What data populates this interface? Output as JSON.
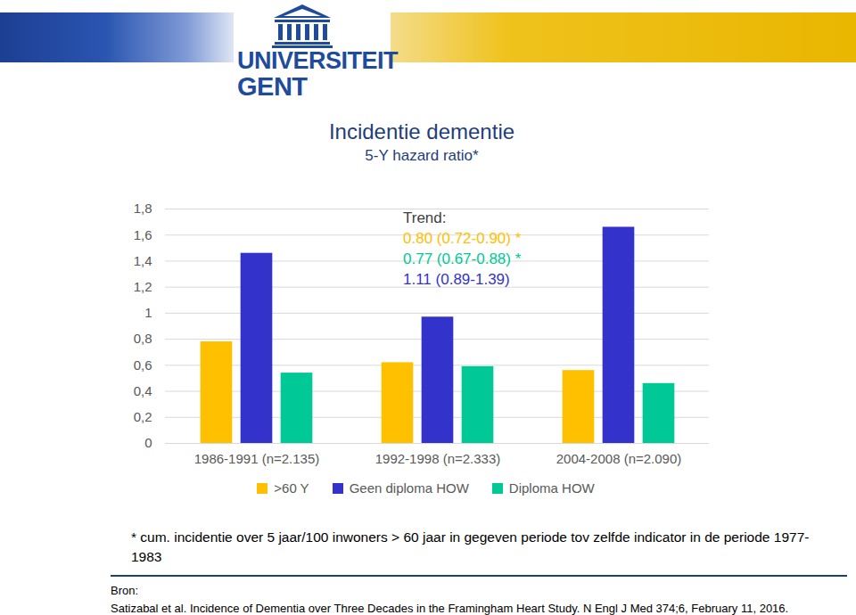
{
  "header": {
    "logo_lines": [
      "UNIVERSITEIT",
      "GENT"
    ]
  },
  "chart_data": {
    "type": "bar",
    "title": "Incidentie dementie",
    "subtitle": "5-Y hazard ratio*",
    "categories": [
      "1986-1991 (n=2.135)",
      "1992-1998 (n=2.333)",
      "2004-2008 (n=2.090)"
    ],
    "series": [
      {
        "name": ">60 Y",
        "color": "#FFC000",
        "values": [
          0.78,
          0.62,
          0.56
        ]
      },
      {
        "name": "Geen diploma HOW",
        "color": "#3333CC",
        "values": [
          1.46,
          0.97,
          1.66
        ]
      },
      {
        "name": "Diploma HOW",
        "color": "#00C896",
        "values": [
          0.54,
          0.59,
          0.46
        ]
      }
    ],
    "ylim": [
      0,
      1.8
    ],
    "yticks": [
      0,
      {
        "value": 0.2,
        "label": "0,2"
      },
      {
        "value": 0.4,
        "label": "0,4"
      },
      {
        "value": 0.6,
        "label": "0,6"
      },
      {
        "value": 0.8,
        "label": "0,8"
      },
      1,
      {
        "value": 1.2,
        "label": "1,2"
      },
      {
        "value": 1.4,
        "label": "1,4"
      },
      {
        "value": 1.6,
        "label": "1,6"
      },
      {
        "value": 1.8,
        "label": "1,8"
      }
    ],
    "grid": true,
    "legend": "bottom",
    "annotations": [
      {
        "text": "Trend:"
      },
      {
        "text": "0.80 (0.72-0.90) *",
        "color": "#FFC000"
      },
      {
        "text": "0.77 (0.67-0.88) *",
        "color": "#00C896"
      },
      {
        "text": "1.11 (0.89-1.39)",
        "color": "#3333CC"
      }
    ],
    "footnote": "* cum. incidentie over 5 jaar/100 inwoners > 60 jaar in gegeven periode tov zelfde indicator in de periode 1977-1983",
    "source_label": "Bron:",
    "source": "Satizabal et al. Incidence of Dementia over Three Decades in the Framingham Heart Study. N Engl J Med 374;6, February 11, 2016."
  }
}
